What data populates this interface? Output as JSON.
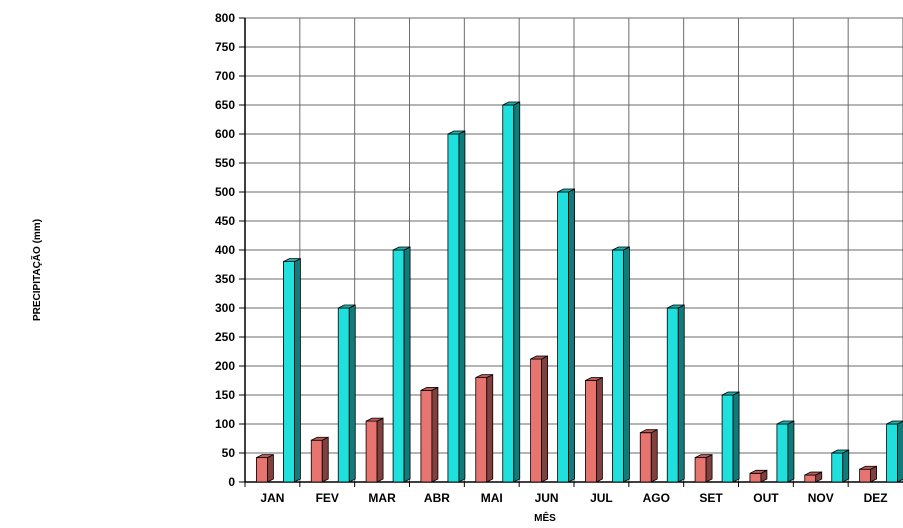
{
  "chart_data": {
    "type": "bar",
    "title": "",
    "xlabel": "MÊS",
    "ylabel": "PRECIPITAÇÃO (mm)",
    "categories": [
      "JAN",
      "FEV",
      "MAR",
      "ABR",
      "MAI",
      "JUN",
      "JUL",
      "AGO",
      "SET",
      "OUT",
      "NOV",
      "DEZ"
    ],
    "series": [
      {
        "color": "#e8746f",
        "values": [
          42,
          72,
          105,
          158,
          180,
          212,
          175,
          85,
          42,
          15,
          12,
          22
        ]
      },
      {
        "color": "#1fe0dc",
        "values": [
          380,
          300,
          400,
          600,
          650,
          500,
          400,
          300,
          150,
          100,
          50,
          100
        ]
      }
    ],
    "ylim": [
      0,
      800
    ],
    "yticks": [
      0,
      50,
      100,
      150,
      200,
      250,
      300,
      350,
      400,
      450,
      500,
      550,
      600,
      650,
      700,
      750,
      800
    ],
    "grid": true,
    "legend": "none",
    "style": "3d-bars"
  }
}
